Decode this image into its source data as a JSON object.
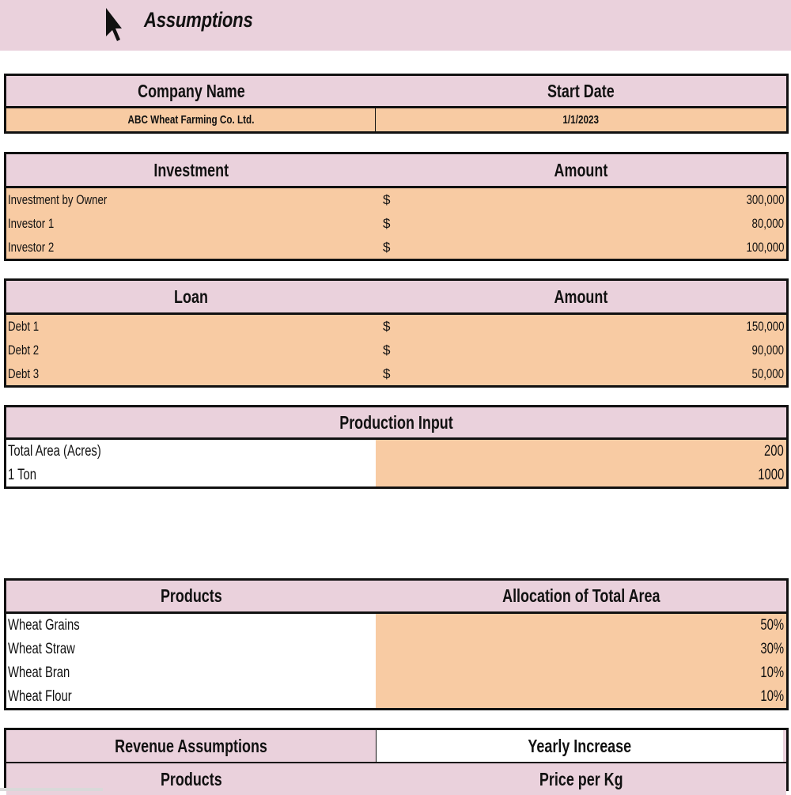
{
  "sheet_title": "Assumptions",
  "company": {
    "header_left": "Company Name",
    "header_right": "Start Date",
    "name": "ABC Wheat Farming Co. Ltd.",
    "start_date": "1/1/2023"
  },
  "investment": {
    "header_left": "Investment",
    "header_right": "Amount",
    "rows": [
      {
        "label": "Investment by Owner",
        "currency": "$",
        "value": "300,000"
      },
      {
        "label": "Investor 1",
        "currency": "$",
        "value": "80,000"
      },
      {
        "label": "Investor 2",
        "currency": "$",
        "value": "100,000"
      }
    ]
  },
  "loan": {
    "header_left": "Loan",
    "header_right": "Amount",
    "rows": [
      {
        "label": "Debt 1",
        "currency": "$",
        "value": "150,000"
      },
      {
        "label": "Debt 2",
        "currency": "$",
        "value": "90,000"
      },
      {
        "label": "Debt 3",
        "currency": "$",
        "value": "50,000"
      }
    ]
  },
  "production": {
    "header": "Production Input",
    "rows": [
      {
        "label": "Total Area (Acres)",
        "value": "200"
      },
      {
        "label": "1 Ton",
        "value": "1000"
      }
    ]
  },
  "products": {
    "header_left": "Products",
    "header_right": "Allocation of Total Area",
    "rows": [
      {
        "label": "Wheat Grains",
        "value": "50%"
      },
      {
        "label": "Wheat Straw",
        "value": "30%"
      },
      {
        "label": "Wheat Bran",
        "value": "10%"
      },
      {
        "label": "Wheat Flour",
        "value": "10%"
      }
    ]
  },
  "revenue": {
    "header_left": "Revenue Assumptions",
    "header_right": "Yearly Increase",
    "sub_left": "Products",
    "sub_right": "Price per Kg"
  },
  "colors": {
    "header_fill": "#ead1dc",
    "input_fill": "#f8cba3",
    "border": "#111111"
  },
  "icons": [
    "mouse-cursor-icon"
  ]
}
